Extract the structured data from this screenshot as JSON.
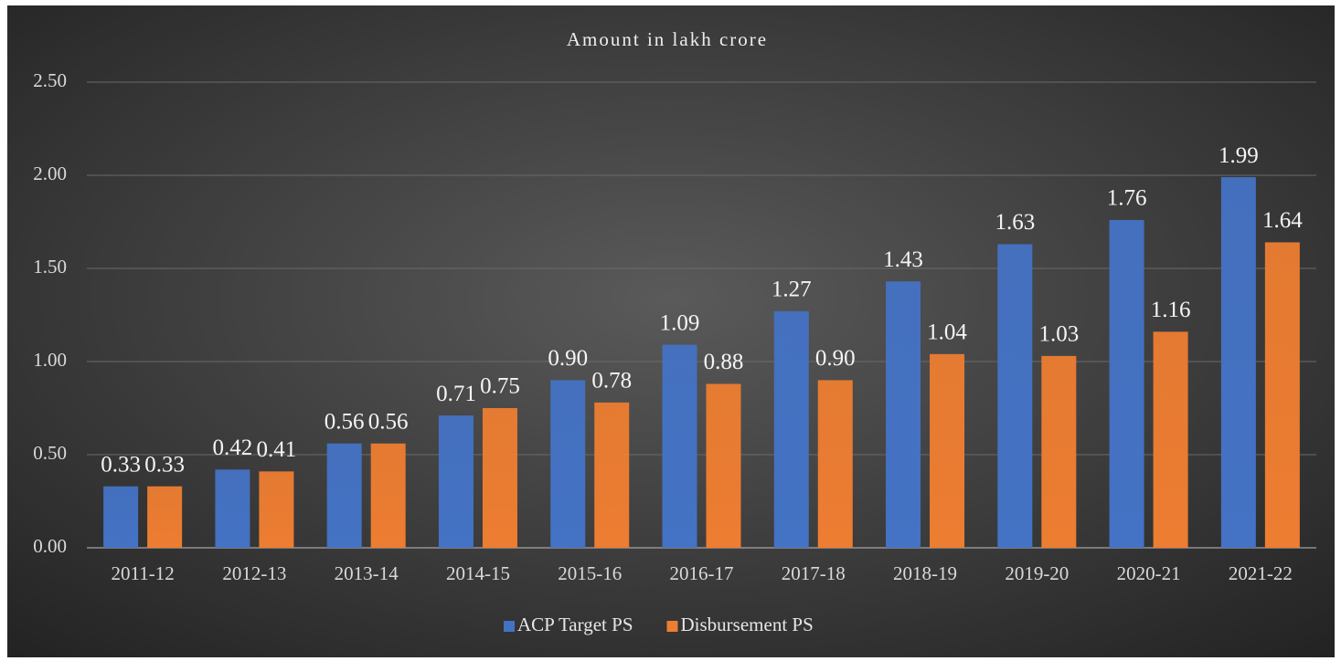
{
  "chart_data": {
    "type": "bar",
    "title": "Amount in lakh crore",
    "categories": [
      "2011-12",
      "2012-13",
      "2013-14",
      "2014-15",
      "2015-16",
      "2016-17",
      "2017-18",
      "2018-19",
      "2019-20",
      "2020-21",
      "2021-22"
    ],
    "series": [
      {
        "name": "ACP Target PS",
        "color": "#4472c4",
        "values": [
          0.33,
          0.42,
          0.56,
          0.71,
          0.9,
          1.09,
          1.27,
          1.43,
          1.63,
          1.76,
          1.99
        ],
        "value_labels": [
          "0.33",
          "0.42",
          "0.56",
          "0.71",
          "0.90",
          "1.09",
          "1.27",
          "1.43",
          "1.63",
          "1.76",
          "1.99"
        ]
      },
      {
        "name": "Disbursement PS",
        "color": "#ed7d31",
        "values": [
          0.33,
          0.41,
          0.56,
          0.75,
          0.78,
          0.88,
          0.9,
          1.04,
          1.03,
          1.16,
          1.64
        ],
        "value_labels": [
          "0.33",
          "0.41",
          "0.56",
          "0.75",
          "0.78",
          "0.88",
          "0.90",
          "1.04",
          "1.03",
          "1.16",
          "1.64"
        ]
      }
    ],
    "ylim": [
      0,
      2.5
    ],
    "yticks": [
      {
        "value": 0,
        "label": "0.00"
      },
      {
        "value": 0.5,
        "label": "0.50"
      },
      {
        "value": 1,
        "label": "1.00"
      },
      {
        "value": 1.5,
        "label": "1.50"
      },
      {
        "value": 2,
        "label": "2.00"
      },
      {
        "value": 2.5,
        "label": "2.50"
      }
    ],
    "grid": true,
    "legend": "bottom"
  }
}
